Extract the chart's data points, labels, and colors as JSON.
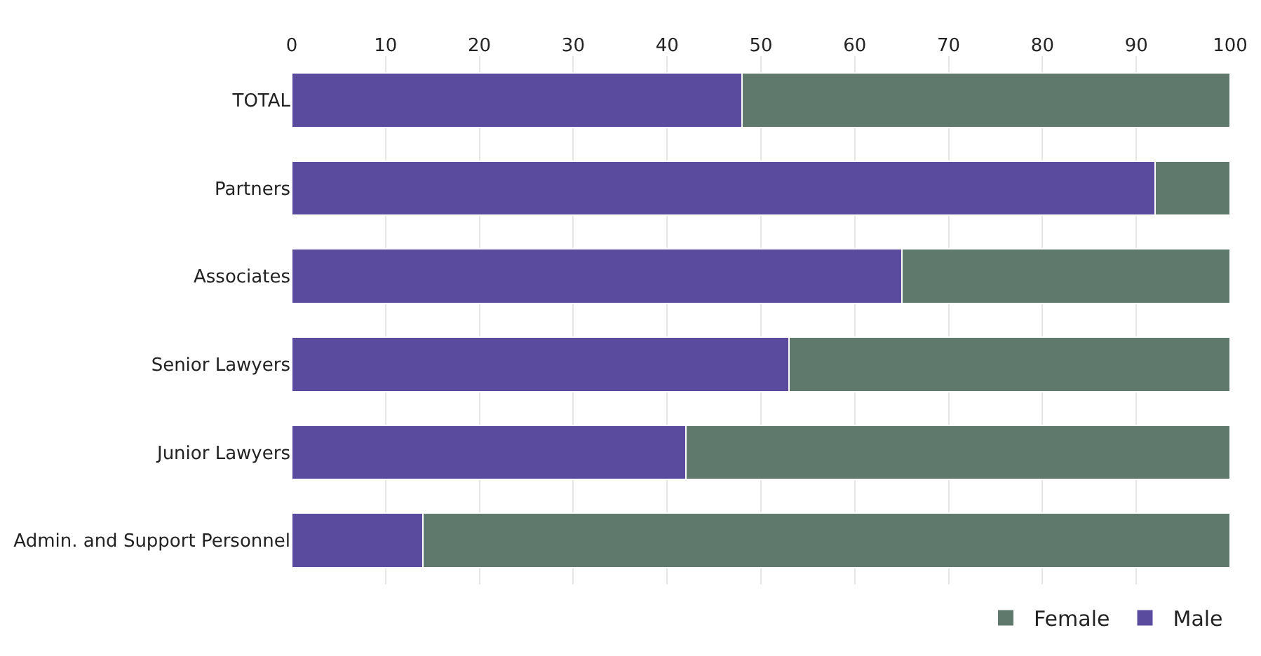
{
  "chart_data": {
    "type": "bar",
    "orientation": "horizontal",
    "stacked": true,
    "categories": [
      "TOTAL",
      "Partners",
      "Associates",
      "Senior Lawyers",
      "Junior Lawyers",
      "Admin. and Support Personnel"
    ],
    "series": [
      {
        "name": "Male",
        "color": "#5b4b9e",
        "values": [
          48,
          92,
          65,
          53,
          42,
          14
        ]
      },
      {
        "name": "Female",
        "color": "#5f7a6c",
        "values": [
          52,
          8,
          35,
          47,
          58,
          86
        ]
      }
    ],
    "xlim": [
      0,
      100
    ],
    "xticks": [
      0,
      10,
      20,
      30,
      40,
      50,
      60,
      70,
      80,
      90,
      100
    ],
    "grid": "x",
    "legend": "bottom right"
  }
}
